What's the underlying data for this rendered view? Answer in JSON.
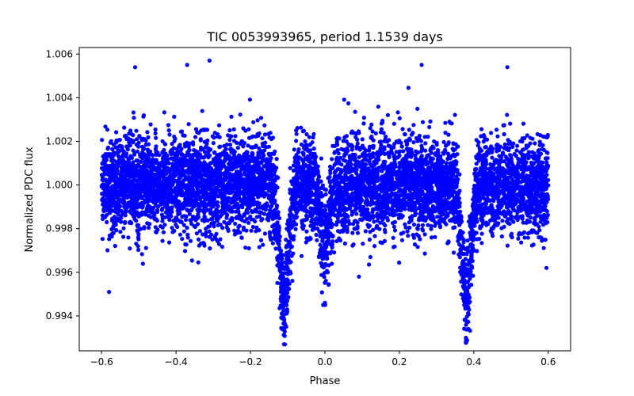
{
  "chart_data": {
    "type": "scatter",
    "title": "TIC 0053993965, period 1.1539 days",
    "xlabel": "Phase",
    "ylabel": "Normalized PDC flux",
    "xlim": [
      -0.66,
      0.66
    ],
    "ylim": [
      0.9924,
      1.0063
    ],
    "xticks": [
      -0.6,
      -0.4,
      -0.2,
      0.0,
      0.2,
      0.4,
      0.6
    ],
    "xtick_labels": [
      "−0.6",
      "−0.4",
      "−0.2",
      "0.0",
      "0.2",
      "0.4",
      "0.6"
    ],
    "yticks": [
      0.994,
      0.996,
      0.998,
      1.0,
      1.002,
      1.004,
      1.006
    ],
    "ytick_labels": [
      "0.994",
      "0.996",
      "0.998",
      "1.000",
      "1.002",
      "1.004",
      "1.006"
    ],
    "marker_color": "#0000ff",
    "series": [
      {
        "name": "flux",
        "phase_range": [
          -0.6,
          0.6
        ],
        "baseline": 1.0,
        "scatter_sigma": 0.0011,
        "min_flux": 0.99265,
        "max_flux": 1.0057,
        "dips": [
          {
            "center": -0.11,
            "depth": 0.0052,
            "width": 0.012
          },
          {
            "center": 0.0,
            "depth": 0.0028,
            "width": 0.012
          },
          {
            "center": 0.38,
            "depth": 0.0052,
            "width": 0.012
          }
        ],
        "sample_points": [
          [
            -0.31,
            1.0057
          ],
          [
            -0.37,
            1.0055
          ],
          [
            -0.51,
            1.0054
          ],
          [
            0.26,
            1.0055
          ],
          [
            0.49,
            1.0054
          ],
          [
            -0.11,
            0.9927
          ],
          [
            0.38,
            0.9929
          ],
          [
            0.0,
            0.9946
          ],
          [
            -0.58,
            0.9951
          ],
          [
            0.595,
            0.9962
          ]
        ]
      }
    ]
  }
}
